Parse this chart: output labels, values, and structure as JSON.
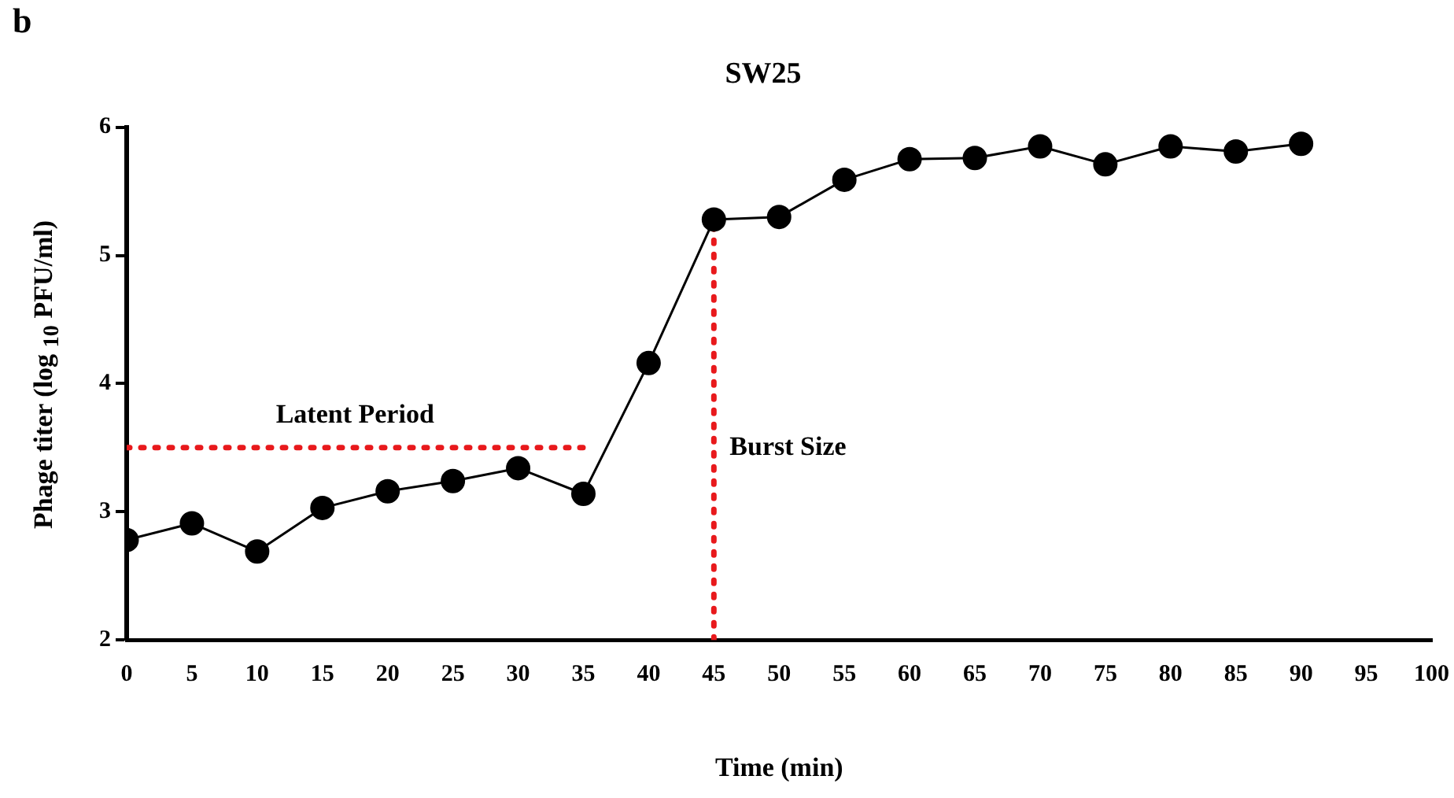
{
  "chart_data": {
    "type": "line",
    "title": "SW25",
    "xlabel": "Time (min)",
    "ylabel": "Phage titer (log $_{10}$ PFU/ml)",
    "xlim": [
      0,
      100
    ],
    "xticks": [
      0,
      5,
      10,
      15,
      20,
      25,
      30,
      35,
      40,
      45,
      50,
      55,
      60,
      65,
      70,
      75,
      80,
      85,
      90,
      95,
      100
    ],
    "ylim": [
      2,
      6
    ],
    "yticks": [
      2,
      3,
      4,
      5,
      6
    ],
    "grid": false,
    "legend": false,
    "series": [
      {
        "color": "#000000",
        "marker": "circle",
        "line_style": "solid",
        "x": [
          0,
          5,
          10,
          15,
          20,
          25,
          30,
          35,
          40,
          45,
          50,
          55,
          60,
          65,
          70,
          75,
          80,
          85,
          90
        ],
        "values": [
          2.78,
          2.91,
          2.69,
          3.03,
          3.16,
          3.24,
          3.34,
          3.14,
          4.16,
          5.28,
          5.3,
          5.59,
          5.75,
          5.76,
          5.85,
          5.71,
          5.85,
          5.81,
          5.87
        ]
      },
      {
        "color": "#e8191c",
        "marker": "none",
        "line_style": "dotted",
        "x": [
          0,
          35
        ],
        "values": [
          3.5,
          3.5
        ]
      },
      {
        "color": "#e8191c",
        "marker": "none",
        "line_style": "dotted",
        "x": [
          45,
          45
        ],
        "values": [
          2,
          5.28
        ]
      }
    ],
    "annotations": [
      "b",
      {
        "text": "Latent Period",
        "x": 17.5,
        "y": 3.5
      },
      {
        "text": "Burst Size",
        "x": 45,
        "y": 3.5
      }
    ]
  }
}
